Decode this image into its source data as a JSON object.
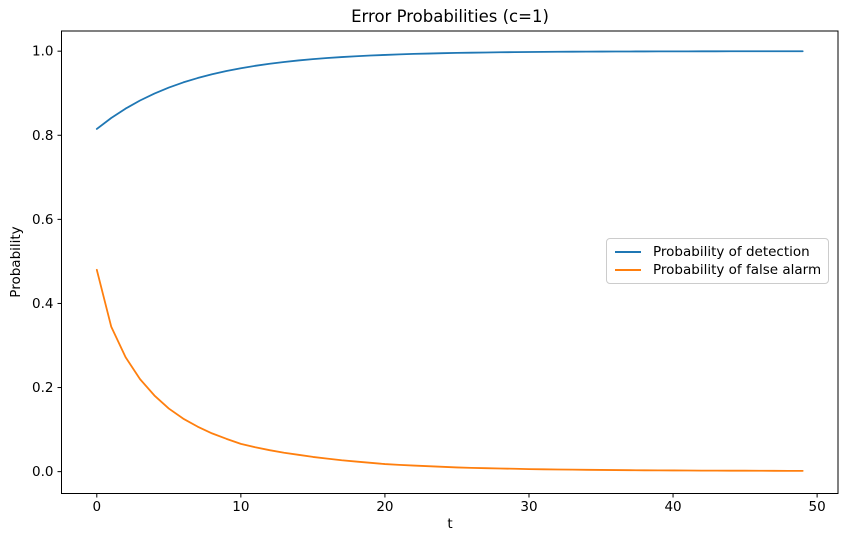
{
  "figure": {
    "title": "Error Probabilities (c=1)",
    "xlabel": "t",
    "ylabel": "Probability"
  },
  "legend": {
    "position": "center right",
    "items": [
      {
        "label": "Probability of detection",
        "color": "#1f77b4"
      },
      {
        "label": "Probability of false alarm",
        "color": "#ff7f0e"
      }
    ]
  },
  "colors": {
    "detection_line": "#1f77b4",
    "false_alarm_line": "#ff7f0e",
    "spine": "#000000",
    "text": "#000000",
    "legend_border": "#cccccc",
    "background": "#ffffff"
  },
  "chart_data": {
    "type": "line",
    "title": "Error Probabilities (c=1)",
    "xlabel": "t",
    "ylabel": "Probability",
    "grid": false,
    "legend_position": "center right",
    "x_ticks": [
      0,
      10,
      20,
      30,
      40,
      50
    ],
    "y_ticks": [
      0.0,
      0.2,
      0.4,
      0.6,
      0.8,
      1.0
    ],
    "xlim": [
      -2.45,
      51.45
    ],
    "ylim": [
      -0.052,
      1.048
    ],
    "x": [
      0,
      1,
      2,
      3,
      4,
      5,
      6,
      7,
      8,
      9,
      10,
      11,
      12,
      13,
      14,
      15,
      16,
      17,
      18,
      19,
      20,
      21,
      22,
      23,
      24,
      25,
      26,
      27,
      28,
      29,
      30,
      31,
      32,
      33,
      34,
      35,
      36,
      37,
      38,
      39,
      40,
      41,
      42,
      43,
      44,
      45,
      46,
      47,
      48,
      49
    ],
    "series": [
      {
        "name": "Probability of detection",
        "color": "#1f77b4",
        "values": [
          0.815,
          0.8411,
          0.8635,
          0.8827,
          0.8993,
          0.9135,
          0.9257,
          0.9361,
          0.9452,
          0.9529,
          0.9595,
          0.9652,
          0.9701,
          0.9743,
          0.978,
          0.9811,
          0.9837,
          0.986,
          0.988,
          0.9897,
          0.9911,
          0.9924,
          0.9935,
          0.9944,
          0.9952,
          0.9959,
          0.9964,
          0.9969,
          0.9974,
          0.9977,
          0.9981,
          0.9983,
          0.9986,
          0.9988,
          0.9989,
          0.9991,
          0.9992,
          0.9993,
          0.9994,
          0.9995,
          0.9996,
          0.9996,
          0.9997,
          0.9997,
          0.9998,
          0.9998,
          0.9998,
          0.9999,
          0.9999,
          0.9999
        ]
      },
      {
        "name": "Probability of false alarm",
        "color": "#ff7f0e",
        "values": [
          0.48,
          0.345,
          0.272,
          0.22,
          0.181,
          0.15,
          0.126,
          0.107,
          0.091,
          0.078,
          0.066,
          0.058,
          0.051,
          0.045,
          0.04,
          0.035,
          0.031,
          0.027,
          0.024,
          0.021,
          0.018,
          0.016,
          0.0145,
          0.013,
          0.0115,
          0.01,
          0.009,
          0.0082,
          0.0075,
          0.0068,
          0.006,
          0.0055,
          0.0051,
          0.0047,
          0.0043,
          0.004,
          0.0037,
          0.0034,
          0.0032,
          0.003,
          0.0028,
          0.0027,
          0.0025,
          0.0024,
          0.0023,
          0.0022,
          0.0021,
          0.002,
          0.0019,
          0.0018
        ]
      }
    ]
  }
}
